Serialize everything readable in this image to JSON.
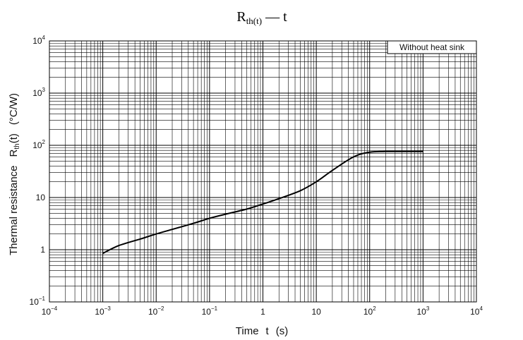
{
  "chart_data": {
    "type": "line",
    "title": "R",
    "title_subscript": "th(t)",
    "title_suffix": " — t",
    "xlabel": "Time t (s)",
    "xlabel_main": "Time",
    "xlabel_var": "t",
    "xlabel_unit": "(s)",
    "ylabel_prefix": "Thermal resistance",
    "ylabel_symbol": "R",
    "ylabel_subscript": "th",
    "ylabel_suffix": "(t)",
    "ylabel_unit": "(°C/W)",
    "x_scale": "log",
    "y_scale": "log",
    "xlim": [
      0.0001,
      10000
    ],
    "ylim": [
      0.1,
      10000
    ],
    "x_ticks": [
      {
        "base": "10",
        "exp": "−4",
        "value": 0.0001
      },
      {
        "base": "10",
        "exp": "−3",
        "value": 0.001
      },
      {
        "base": "10",
        "exp": "−2",
        "value": 0.01
      },
      {
        "base": "10",
        "exp": "−1",
        "value": 0.1
      },
      {
        "base": "1",
        "exp": "",
        "value": 1
      },
      {
        "base": "10",
        "exp": "",
        "value": 10
      },
      {
        "base": "10",
        "exp": "2",
        "value": 100
      },
      {
        "base": "10",
        "exp": "3",
        "value": 1000
      },
      {
        "base": "10",
        "exp": "4",
        "value": 10000
      }
    ],
    "y_ticks": [
      {
        "base": "10",
        "exp": "−1",
        "value": 0.1
      },
      {
        "base": "1",
        "exp": "",
        "value": 1
      },
      {
        "base": "10",
        "exp": "",
        "value": 10
      },
      {
        "base": "10",
        "exp": "2",
        "value": 100
      },
      {
        "base": "10",
        "exp": "3",
        "value": 1000
      },
      {
        "base": "10",
        "exp": "4",
        "value": 10000
      }
    ],
    "grid": true,
    "legend_position": "top-right",
    "annotation": "Without heat sink",
    "series": [
      {
        "x": [
          0.001,
          0.002,
          0.005,
          0.01,
          0.02,
          0.05,
          0.1,
          0.2,
          0.5,
          1,
          2,
          5,
          10,
          20,
          50,
          100,
          200,
          500,
          1000
        ],
        "y": [
          0.85,
          1.2,
          1.6,
          2.0,
          2.45,
          3.2,
          4.0,
          4.8,
          6.0,
          7.5,
          9.5,
          13.5,
          20,
          33,
          60,
          74,
          76,
          76,
          76
        ]
      }
    ]
  },
  "colors": {
    "line": "#000000",
    "grid": "#000000",
    "watermark": "#e8a0a0"
  }
}
